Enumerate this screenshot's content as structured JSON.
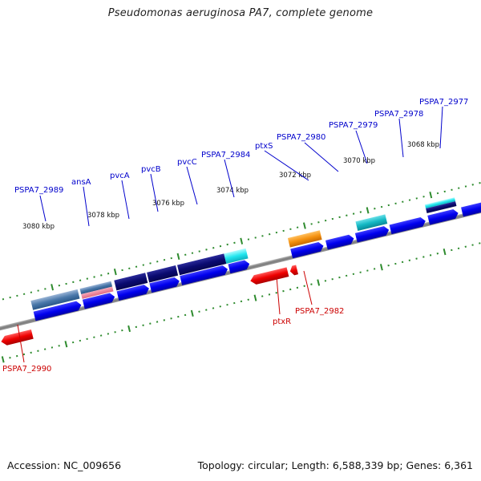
{
  "title": "Pseudomonas aeruginosa PA7, complete genome",
  "footer": {
    "accession": "Accession: NC_009656",
    "summary": "Topology: circular; Length: 6,588,339 bp; Genes: 6,361"
  },
  "scale_labels": [
    "3080 kbp",
    "3078 kbp",
    "3076 kbp",
    "3074 kbp",
    "3072 kbp",
    "3070 kbp",
    "3068 kbp"
  ],
  "genes_forward": [
    "PSPA7_2989",
    "ansA",
    "pvcA",
    "pvcB",
    "pvcC",
    "PSPA7_2984",
    "ptxS",
    "PSPA7_2980",
    "PSPA7_2979",
    "PSPA7_2978",
    "PSPA7_2977"
  ],
  "genes_reverse": [
    "PSPA7_2990",
    "ptxR",
    "PSPA7_2982"
  ],
  "colors": {
    "forward_label": "#0000cc",
    "reverse_label": "#cc0000",
    "tick": "#2e8b2e",
    "backbone": "#7a7a7a",
    "cds": "#0000ee",
    "reverse_cds": "#ee0000"
  }
}
